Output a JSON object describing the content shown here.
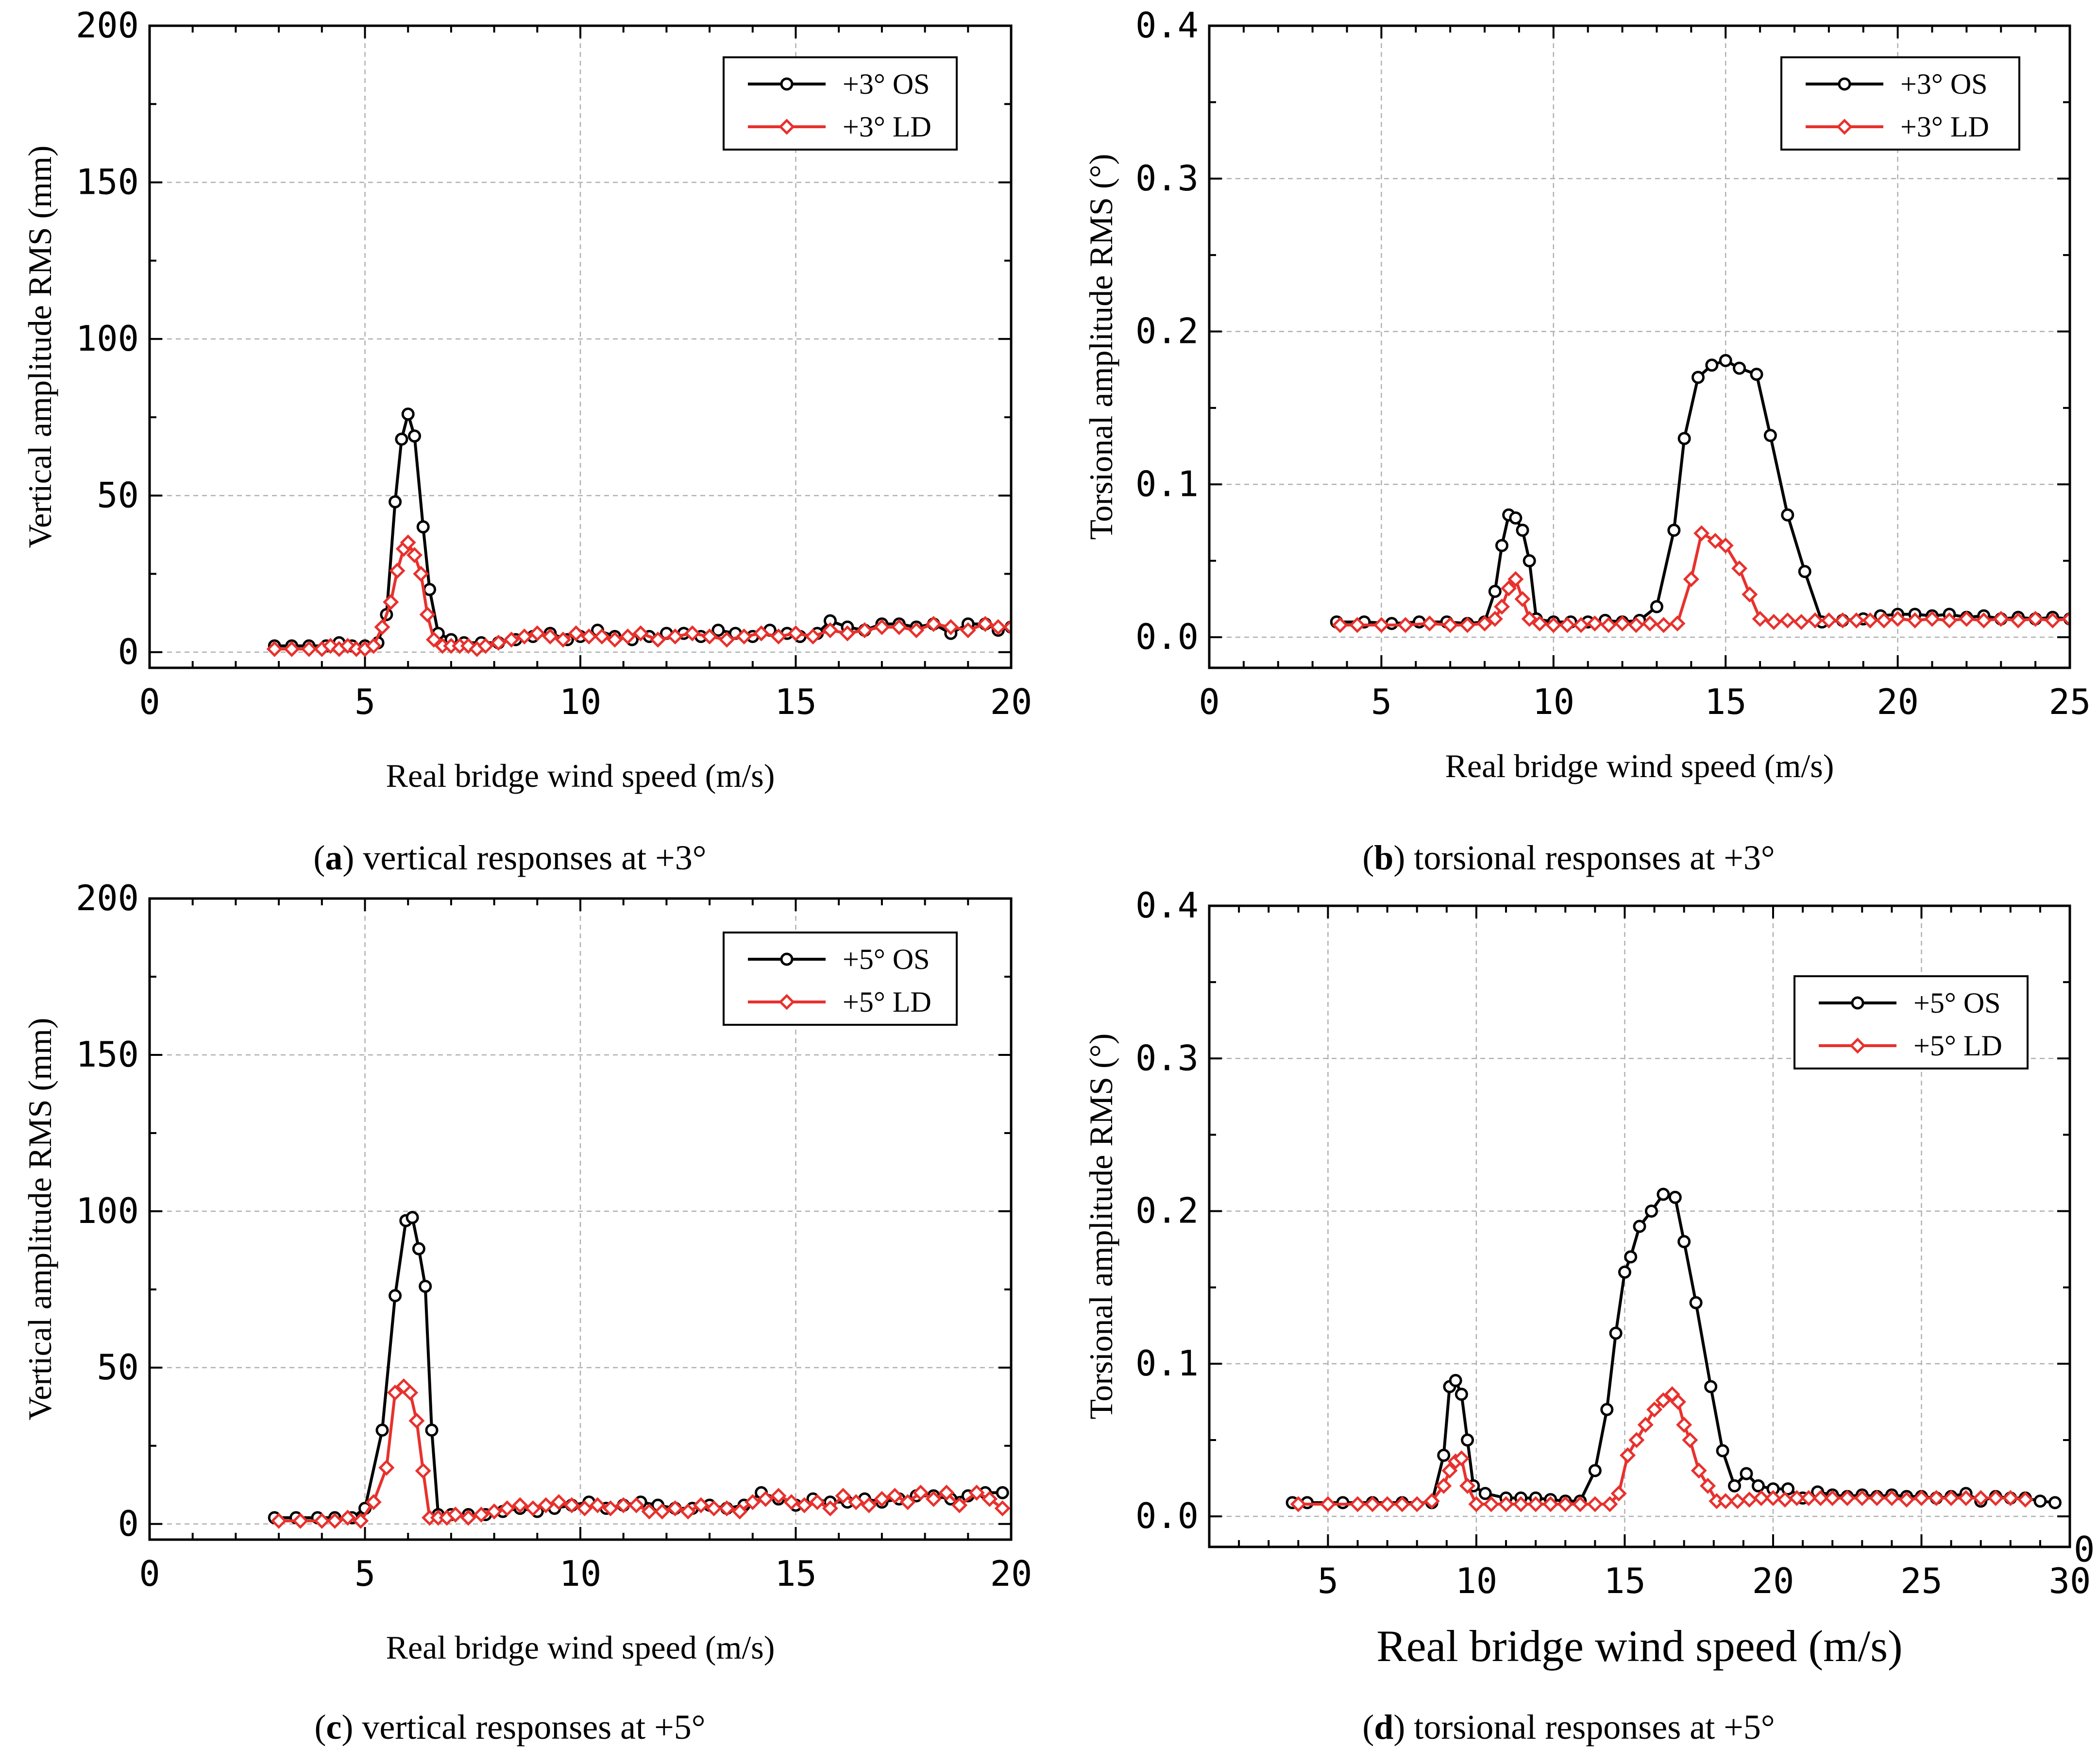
{
  "chart_data": [
    {
      "type": "line",
      "panel": "a",
      "caption_letter": "a",
      "caption_text": " vertical responses at +3°",
      "xlabel": "Real bridge wind speed (m/s)",
      "ylabel": "Vertical amplitude RMS (mm)",
      "xlim": [
        0,
        20
      ],
      "ylim": [
        -5,
        200
      ],
      "xticks": [
        0,
        5,
        10,
        15,
        20
      ],
      "yticks": [
        0,
        50,
        100,
        150,
        200
      ],
      "xtick_labels": [
        "0",
        "5",
        "10",
        "15",
        "20"
      ],
      "ytick_labels": [
        "0",
        "50",
        "100",
        "150",
        "200"
      ],
      "grid": true,
      "legend_position": "top-right",
      "series": [
        {
          "name": "+3° OS",
          "color": "#000000",
          "marker": "circle",
          "x": [
            2.9,
            3.3,
            3.7,
            4.1,
            4.4,
            4.7,
            5.0,
            5.3,
            5.5,
            5.7,
            5.85,
            6.0,
            6.15,
            6.35,
            6.5,
            6.7,
            7.0,
            7.3,
            7.7,
            8.1,
            8.5,
            8.9,
            9.3,
            9.7,
            10.0,
            10.4,
            10.8,
            11.2,
            11.6,
            12.0,
            12.4,
            12.8,
            13.2,
            13.6,
            14.0,
            14.4,
            14.8,
            15.1,
            15.5,
            15.8,
            16.2,
            16.6,
            17.0,
            17.4,
            17.8,
            18.2,
            18.6,
            19.0,
            19.4,
            19.7,
            20.0
          ],
          "y": [
            2,
            2,
            2,
            2,
            3,
            2,
            2,
            3,
            12,
            48,
            68,
            76,
            69,
            40,
            20,
            6,
            4,
            3,
            3,
            3,
            4,
            5,
            6,
            4,
            5,
            7,
            5,
            4,
            5,
            6,
            6,
            5,
            7,
            6,
            5,
            7,
            6,
            5,
            6,
            10,
            8,
            7,
            9,
            9,
            8,
            9,
            6,
            9,
            9,
            7,
            8
          ]
        },
        {
          "name": "+3° LD",
          "color": "#e8312d",
          "marker": "diamond",
          "x": [
            2.9,
            3.3,
            3.7,
            4.0,
            4.2,
            4.4,
            4.6,
            4.8,
            5.0,
            5.2,
            5.4,
            5.6,
            5.75,
            5.9,
            6.0,
            6.15,
            6.3,
            6.45,
            6.6,
            6.8,
            7.0,
            7.2,
            7.4,
            7.6,
            7.8,
            8.1,
            8.4,
            8.7,
            9.0,
            9.3,
            9.6,
            9.9,
            10.2,
            10.5,
            10.8,
            11.1,
            11.4,
            11.8,
            12.2,
            12.6,
            13.0,
            13.4,
            13.8,
            14.2,
            14.6,
            15.0,
            15.4,
            15.8,
            16.2,
            16.6,
            17.0,
            17.4,
            17.8,
            18.2,
            18.6,
            19.0,
            19.4,
            19.7,
            20.0
          ],
          "y": [
            1,
            1,
            1,
            1,
            2,
            1,
            2,
            1,
            1,
            2,
            8,
            16,
            26,
            33,
            35,
            31,
            25,
            12,
            4,
            2,
            2,
            2,
            2,
            1,
            2,
            3,
            4,
            5,
            6,
            5,
            4,
            6,
            5,
            5,
            4,
            5,
            6,
            4,
            5,
            6,
            5,
            4,
            5,
            6,
            5,
            6,
            5,
            7,
            6,
            7,
            8,
            8,
            7,
            9,
            8,
            7,
            9,
            8,
            8
          ]
        }
      ]
    },
    {
      "type": "line",
      "panel": "b",
      "caption_letter": "b",
      "caption_text": " torsional responses at +3°",
      "xlabel": "Real bridge wind speed (m/s)",
      "ylabel": "Torsional amplitude RMS (°)",
      "xlim": [
        0,
        25
      ],
      "ylim": [
        -0.02,
        0.4
      ],
      "xticks": [
        0,
        5,
        10,
        15,
        20,
        25
      ],
      "yticks": [
        0.0,
        0.1,
        0.2,
        0.3,
        0.4
      ],
      "xtick_labels": [
        "0",
        "5",
        "10",
        "15",
        "20",
        "25"
      ],
      "ytick_labels": [
        "0.0",
        "0.1",
        "0.2",
        "0.3",
        "0.4"
      ],
      "grid": true,
      "legend_position": "top-right",
      "series": [
        {
          "name": "+3° OS",
          "color": "#000000",
          "marker": "circle",
          "x": [
            3.7,
            4.5,
            5.3,
            6.1,
            6.9,
            7.5,
            8.0,
            8.3,
            8.5,
            8.7,
            8.9,
            9.1,
            9.3,
            9.5,
            10.0,
            10.5,
            11.0,
            11.5,
            12.0,
            12.5,
            13.0,
            13.5,
            13.8,
            14.2,
            14.6,
            15.0,
            15.4,
            15.9,
            16.3,
            16.8,
            17.3,
            17.8,
            18.4,
            19.0,
            19.5,
            20.0,
            20.5,
            21.0,
            21.5,
            22.0,
            22.5,
            23.0,
            23.5,
            24.0,
            24.5,
            25.0
          ],
          "y": [
            0.01,
            0.01,
            0.009,
            0.01,
            0.01,
            0.009,
            0.01,
            0.03,
            0.06,
            0.08,
            0.078,
            0.07,
            0.05,
            0.012,
            0.01,
            0.01,
            0.01,
            0.011,
            0.01,
            0.011,
            0.02,
            0.07,
            0.13,
            0.17,
            0.178,
            0.181,
            0.176,
            0.172,
            0.132,
            0.08,
            0.043,
            0.01,
            0.011,
            0.012,
            0.014,
            0.015,
            0.015,
            0.014,
            0.015,
            0.013,
            0.014,
            0.012,
            0.013,
            0.012,
            0.013,
            0.012
          ]
        },
        {
          "name": "+3° LD",
          "color": "#e8312d",
          "marker": "diamond",
          "x": [
            3.8,
            4.3,
            5.0,
            5.7,
            6.4,
            7.0,
            7.5,
            8.0,
            8.3,
            8.5,
            8.7,
            8.9,
            9.1,
            9.3,
            9.6,
            10.0,
            10.4,
            10.8,
            11.2,
            11.6,
            12.0,
            12.4,
            12.8,
            13.2,
            13.6,
            14.0,
            14.3,
            14.7,
            15.0,
            15.4,
            15.7,
            16.0,
            16.4,
            16.8,
            17.2,
            17.6,
            18.0,
            18.4,
            18.8,
            19.2,
            19.6,
            20.0,
            20.5,
            21.0,
            21.5,
            22.0,
            22.5,
            23.0,
            23.5,
            24.0,
            24.5,
            25.0
          ],
          "y": [
            0.008,
            0.008,
            0.008,
            0.008,
            0.009,
            0.008,
            0.008,
            0.009,
            0.012,
            0.02,
            0.032,
            0.038,
            0.025,
            0.012,
            0.009,
            0.008,
            0.008,
            0.008,
            0.009,
            0.008,
            0.009,
            0.008,
            0.009,
            0.008,
            0.009,
            0.038,
            0.068,
            0.063,
            0.06,
            0.045,
            0.028,
            0.012,
            0.01,
            0.011,
            0.01,
            0.011,
            0.011,
            0.011,
            0.011,
            0.011,
            0.011,
            0.012,
            0.011,
            0.012,
            0.011,
            0.012,
            0.011,
            0.012,
            0.011,
            0.012,
            0.011,
            0.012
          ]
        }
      ]
    },
    {
      "type": "line",
      "panel": "c",
      "caption_letter": "c",
      "caption_text": " vertical responses at +5°",
      "xlabel": "Real bridge wind speed (m/s)",
      "ylabel": "Vertical amplitude RMS (mm)",
      "xlim": [
        0,
        20
      ],
      "ylim": [
        -5,
        200
      ],
      "xticks": [
        0,
        5,
        10,
        15,
        20
      ],
      "yticks": [
        0,
        50,
        100,
        150,
        200
      ],
      "xtick_labels": [
        "0",
        "5",
        "10",
        "15",
        "20"
      ],
      "ytick_labels": [
        "0",
        "50",
        "100",
        "150",
        "200"
      ],
      "grid": true,
      "legend_position": "top-right",
      "series": [
        {
          "name": "+5° OS",
          "color": "#000000",
          "marker": "circle",
          "x": [
            2.9,
            3.4,
            3.9,
            4.3,
            4.7,
            5.0,
            5.4,
            5.7,
            5.95,
            6.1,
            6.25,
            6.4,
            6.55,
            6.7,
            7.0,
            7.4,
            7.8,
            8.2,
            8.6,
            9.0,
            9.4,
            9.8,
            10.2,
            10.6,
            11.0,
            11.4,
            11.8,
            12.2,
            12.6,
            13.0,
            13.4,
            13.8,
            14.2,
            14.6,
            15.0,
            15.4,
            15.8,
            16.2,
            16.6,
            17.0,
            17.4,
            17.8,
            18.2,
            18.6,
            19.0,
            19.4,
            19.8
          ],
          "y": [
            2,
            2,
            2,
            2,
            2,
            5,
            30,
            73,
            97,
            98,
            88,
            76,
            30,
            3,
            3,
            3,
            3,
            4,
            5,
            4,
            5,
            6,
            7,
            5,
            6,
            7,
            6,
            5,
            5,
            6,
            5,
            6,
            10,
            8,
            6,
            8,
            7,
            7,
            8,
            7,
            8,
            9,
            9,
            8,
            9,
            10,
            10
          ]
        },
        {
          "name": "+5° LD",
          "color": "#e8312d",
          "marker": "diamond",
          "x": [
            3.0,
            3.5,
            4.0,
            4.3,
            4.6,
            4.9,
            5.2,
            5.5,
            5.7,
            5.9,
            6.05,
            6.2,
            6.35,
            6.5,
            6.7,
            6.9,
            7.1,
            7.4,
            7.7,
            8.0,
            8.3,
            8.6,
            8.9,
            9.2,
            9.5,
            9.8,
            10.1,
            10.4,
            10.7,
            11.0,
            11.3,
            11.6,
            11.9,
            12.2,
            12.5,
            12.8,
            13.1,
            13.4,
            13.7,
            14.0,
            14.3,
            14.6,
            14.9,
            15.2,
            15.5,
            15.8,
            16.1,
            16.4,
            16.7,
            17.0,
            17.3,
            17.6,
            17.9,
            18.2,
            18.5,
            18.8,
            19.2,
            19.5,
            19.8
          ],
          "y": [
            1,
            1,
            1,
            1,
            2,
            1,
            7,
            18,
            42,
            44,
            42,
            33,
            17,
            2,
            2,
            2,
            3,
            2,
            3,
            4,
            5,
            6,
            5,
            6,
            7,
            6,
            5,
            6,
            5,
            6,
            6,
            4,
            4,
            5,
            4,
            6,
            5,
            5,
            4,
            7,
            8,
            9,
            7,
            6,
            7,
            5,
            9,
            7,
            6,
            8,
            9,
            7,
            10,
            8,
            10,
            6,
            10,
            8,
            5
          ]
        }
      ]
    },
    {
      "type": "line",
      "panel": "d",
      "caption_letter": "d",
      "caption_text": " torsional responses at +5°",
      "xlabel": "Real bridge wind speed (m/s)",
      "ylabel": "Torsional amplitude RMS (°)",
      "xlim": [
        1,
        30
      ],
      "ylim": [
        -0.02,
        0.4
      ],
      "xticks": [
        5,
        10,
        15,
        20,
        25,
        30
      ],
      "yticks": [
        0.0,
        0.1,
        0.2,
        0.3,
        0.4
      ],
      "xtick_labels": [
        "5",
        "10",
        "15",
        "20",
        "25",
        "30"
      ],
      "ytick_labels": [
        "0.0",
        "0.1",
        "0.2",
        "0.3",
        "0.4"
      ],
      "corner_label": "0",
      "grid": true,
      "legend_position": "right",
      "series": [
        {
          "name": "+5° OS",
          "color": "#000000",
          "marker": "circle",
          "x": [
            3.8,
            4.3,
            5.5,
            6.5,
            7.5,
            8.5,
            8.9,
            9.1,
            9.3,
            9.5,
            9.7,
            9.9,
            10.3,
            11.0,
            11.5,
            12.0,
            12.5,
            13.0,
            13.5,
            14.0,
            14.4,
            14.7,
            15.0,
            15.2,
            15.5,
            15.9,
            16.3,
            16.7,
            17.0,
            17.4,
            17.9,
            18.3,
            18.7,
            19.1,
            19.5,
            20.0,
            20.5,
            21.0,
            21.5,
            22.0,
            22.5,
            23.0,
            23.5,
            24.0,
            24.5,
            25.0,
            25.5,
            26.0,
            26.5,
            27.0,
            27.5,
            28.0,
            28.5,
            29.0,
            29.5
          ],
          "y": [
            0.009,
            0.009,
            0.009,
            0.009,
            0.009,
            0.009,
            0.04,
            0.085,
            0.089,
            0.08,
            0.05,
            0.02,
            0.015,
            0.012,
            0.012,
            0.012,
            0.011,
            0.01,
            0.01,
            0.03,
            0.07,
            0.12,
            0.16,
            0.17,
            0.19,
            0.2,
            0.211,
            0.209,
            0.18,
            0.14,
            0.085,
            0.043,
            0.02,
            0.028,
            0.02,
            0.018,
            0.018,
            0.012,
            0.016,
            0.014,
            0.013,
            0.014,
            0.013,
            0.014,
            0.013,
            0.013,
            0.012,
            0.013,
            0.015,
            0.01,
            0.013,
            0.012,
            0.012,
            0.01,
            0.009
          ]
        },
        {
          "name": "+5° LD",
          "color": "#e8312d",
          "marker": "diamond",
          "x": [
            4.0,
            5.0,
            6.0,
            6.5,
            7.0,
            7.5,
            8.0,
            8.5,
            8.9,
            9.1,
            9.3,
            9.5,
            9.7,
            10.0,
            10.5,
            11.0,
            11.5,
            12.0,
            12.5,
            13.0,
            13.5,
            14.0,
            14.5,
            14.8,
            15.1,
            15.4,
            15.7,
            16.0,
            16.3,
            16.6,
            16.8,
            17.0,
            17.2,
            17.5,
            17.8,
            18.1,
            18.4,
            18.8,
            19.2,
            19.6,
            20.0,
            20.4,
            20.8,
            21.2,
            21.6,
            22.0,
            22.5,
            23.0,
            23.5,
            24.0,
            24.5,
            25.0,
            25.5,
            26.0,
            26.5,
            27.0,
            27.5,
            28.0,
            28.5
          ],
          "y": [
            0.008,
            0.008,
            0.008,
            0.008,
            0.008,
            0.008,
            0.008,
            0.01,
            0.02,
            0.03,
            0.036,
            0.038,
            0.02,
            0.008,
            0.008,
            0.008,
            0.008,
            0.008,
            0.008,
            0.008,
            0.008,
            0.008,
            0.008,
            0.015,
            0.04,
            0.05,
            0.06,
            0.07,
            0.076,
            0.08,
            0.075,
            0.06,
            0.05,
            0.03,
            0.02,
            0.01,
            0.01,
            0.01,
            0.011,
            0.012,
            0.012,
            0.011,
            0.012,
            0.012,
            0.012,
            0.012,
            0.012,
            0.012,
            0.012,
            0.012,
            0.011,
            0.012,
            0.012,
            0.012,
            0.012,
            0.012,
            0.012,
            0.012,
            0.011
          ]
        }
      ]
    }
  ]
}
